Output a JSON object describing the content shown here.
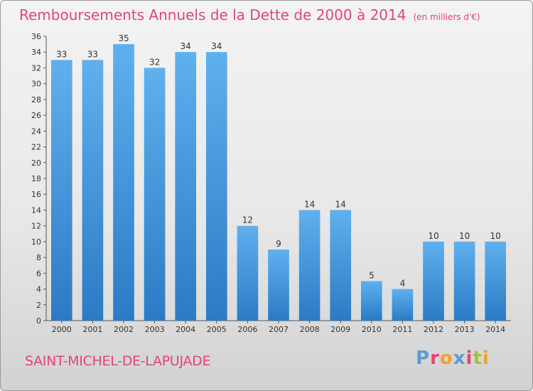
{
  "chart_data": {
    "type": "bar",
    "title": "Remboursements Annuels de la Dette de 2000 à 2014",
    "subtitle": "(en milliers d'€)",
    "categories": [
      "2000",
      "2001",
      "2002",
      "2003",
      "2004",
      "2005",
      "2006",
      "2007",
      "2008",
      "2009",
      "2010",
      "2011",
      "2012",
      "2013",
      "2014"
    ],
    "values": [
      33,
      33,
      35,
      32,
      34,
      34,
      12,
      9,
      14,
      14,
      5,
      4,
      10,
      10,
      10
    ],
    "ylim": [
      0,
      36
    ],
    "yticks": [
      0,
      2,
      4,
      6,
      8,
      10,
      12,
      14,
      16,
      18,
      20,
      22,
      24,
      26,
      28,
      30,
      32,
      34,
      36
    ],
    "grid": false,
    "bar_color": "#4a9fe0",
    "title_color": "#e0457b"
  },
  "footer": {
    "commune": "SAINT-MICHEL-DE-LAPUJADE"
  },
  "logo": {
    "text": "Proxiti",
    "letter_colors": [
      "#5b9bd5",
      "#e0457b",
      "#f0a030",
      "#5b9bd5",
      "#e0457b",
      "#9bc53d",
      "#f0a030"
    ]
  }
}
